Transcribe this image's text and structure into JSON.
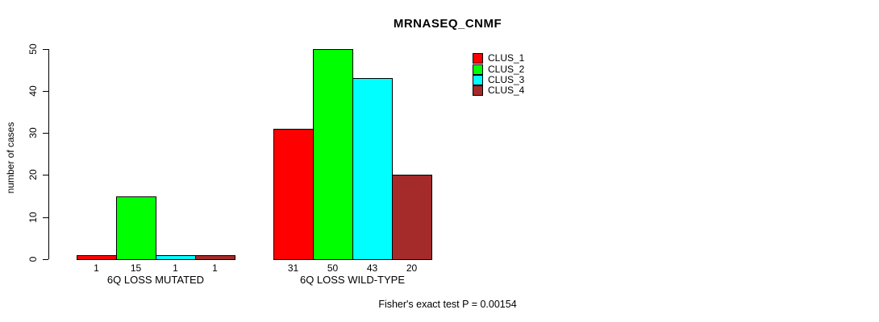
{
  "chart_data": {
    "type": "bar",
    "title": "MRNASEQ_CNMF",
    "ylabel": "number of cases",
    "xlabel": "",
    "annotation": "Fisher's exact test P = 0.00154",
    "ylim": [
      0,
      50
    ],
    "yticks": [
      0,
      10,
      20,
      30,
      40,
      50
    ],
    "grid": false,
    "legend_position": "top-right",
    "bar_value_labels": true,
    "categories": [
      "6Q LOSS MUTATED",
      "6Q LOSS WILD-TYPE"
    ],
    "series": [
      {
        "name": "CLUS_1",
        "color": "#FF0000",
        "values": [
          1,
          31
        ]
      },
      {
        "name": "CLUS_2",
        "color": "#00FF00",
        "values": [
          15,
          50
        ]
      },
      {
        "name": "CLUS_3",
        "color": "#00FFFF",
        "values": [
          1,
          43
        ]
      },
      {
        "name": "CLUS_4",
        "color": "#A52A2A",
        "values": [
          1,
          20
        ]
      }
    ]
  }
}
